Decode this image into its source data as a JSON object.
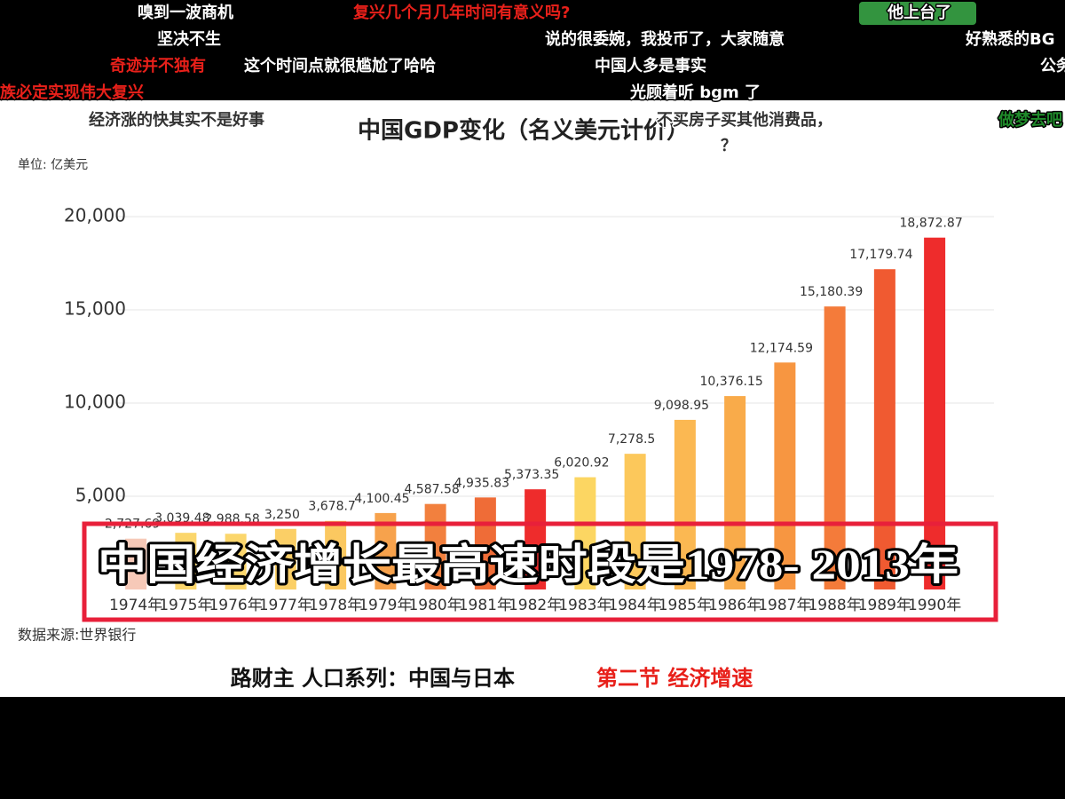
{
  "chart_data": {
    "type": "bar",
    "title": "中国GDP变化（名义美元计价）",
    "unit_label": "单位: 亿美元",
    "source": "数据来源:世界银行",
    "categories": [
      "1974年",
      "1975年",
      "1976年",
      "1977年",
      "1978年",
      "1979年",
      "1980年",
      "1981年",
      "1982年",
      "1983年",
      "1984年",
      "1985年",
      "1986年",
      "1987年",
      "1988年",
      "1989年",
      "1990年"
    ],
    "values": [
      2727.69,
      3039.48,
      2988.58,
      3250,
      3678.7,
      4100.45,
      4587.58,
      4935.83,
      5373.35,
      6020.92,
      7278.5,
      9098.95,
      10376.15,
      12174.59,
      15180.39,
      17179.74,
      18872.87
    ],
    "value_labels": [
      "2,727.69",
      "3,039.48",
      "2,988.58",
      "3,250",
      "3,678.7",
      "4,100.45",
      "4,587.58",
      "4,935.83",
      "5,373.35",
      "6,020.92",
      "7,278.5",
      "9,098.95",
      "10,376.15",
      "12,174.59",
      "15,180.39",
      "17,179.74",
      "18,872.87"
    ],
    "colors": [
      "#f6c9b8",
      "#fbd66c",
      "#fbd66c",
      "#fbcf66",
      "#fbc860",
      "#f7a24c",
      "#f2803e",
      "#ef6c37",
      "#ee2c2c",
      "#fcd662",
      "#fcc85b",
      "#fbb852",
      "#f9ab4a",
      "#f79641",
      "#f47b3a",
      "#f05a31",
      "#ee2c2c"
    ],
    "ylim": [
      0,
      21000
    ],
    "yticks": [
      {
        "value": 5000,
        "label": "5,000"
      },
      {
        "value": 10000,
        "label": "10,000"
      },
      {
        "value": 15000,
        "label": "15,000"
      },
      {
        "value": 20000,
        "label": "20,000"
      }
    ],
    "grid": true
  },
  "subtitle": "中国经济增长最高速时段是1978- 2013年",
  "caption": {
    "main": "路财主  人口系列：中国与日本",
    "highlight": "第二节 经济增速"
  },
  "danmaku": [
    {
      "text": "嗅到一波商机",
      "color": "#ffffff"
    },
    {
      "text": "复兴几个月几年时间有意义吗?",
      "color": "#e8201a"
    },
    {
      "text": "他上台了",
      "color": "#ffffff"
    },
    {
      "text": "坚决不生",
      "color": "#ffffff"
    },
    {
      "text": "说的很委婉，我投币了，大家随意",
      "color": "#ffffff"
    },
    {
      "text": "好熟悉的BG",
      "color": "#ffffff"
    },
    {
      "text": "奇迹并不独有",
      "color": "#e8201a"
    },
    {
      "text": "这个时间点就很尴尬了哈哈",
      "color": "#ffffff"
    },
    {
      "text": "中国人多是事实",
      "color": "#ffffff"
    },
    {
      "text": "公务",
      "color": "#ffffff"
    },
    {
      "text": "族必定实现伟大复兴",
      "color": "#e8201a"
    },
    {
      "text": "光顾着听 bgm 了",
      "color": "#ffffff"
    },
    {
      "text": "经济涨的快其实不是好事",
      "color": "#333333"
    },
    {
      "text": "不买房子买其他消费品，",
      "color": "#333333"
    },
    {
      "text": "？",
      "color": "#333333"
    },
    {
      "text": "做梦去吧",
      "color": "#1f8a2a"
    }
  ]
}
